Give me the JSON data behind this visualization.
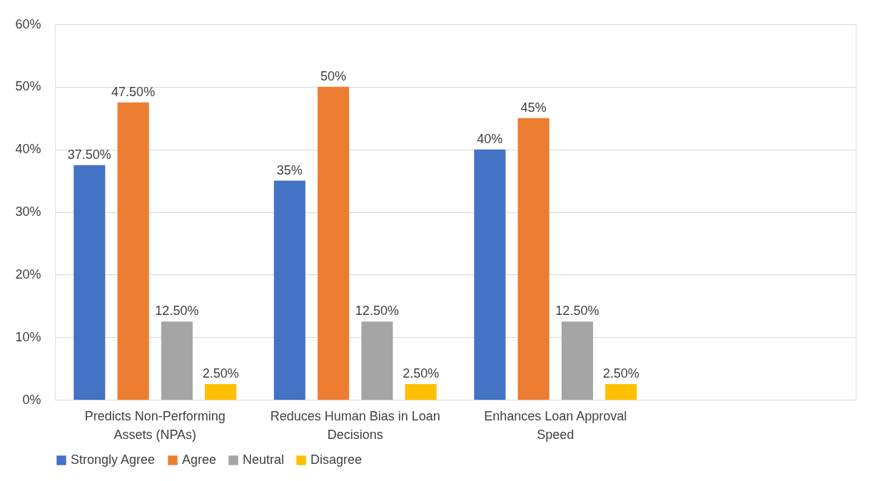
{
  "chart_data": {
    "type": "bar",
    "categories": [
      "Predicts Non-Performing Assets (NPAs)",
      "Reduces Human Bias in Loan Decisions",
      "Enhances Loan Approval Speed",
      null
    ],
    "series": [
      {
        "name": "Strongly Agree",
        "color": "#4472c4",
        "values": [
          37.5,
          35,
          40,
          null
        ],
        "value_labels": [
          "37.50%",
          "35%",
          "40%",
          null
        ]
      },
      {
        "name": "Agree",
        "color": "#ed7d31",
        "values": [
          47.5,
          50,
          45,
          null
        ],
        "value_labels": [
          "47.50%",
          "50%",
          "45%",
          null
        ]
      },
      {
        "name": "Neutral",
        "color": "#a5a5a5",
        "values": [
          12.5,
          12.5,
          12.5,
          null
        ],
        "value_labels": [
          "12.50%",
          "12.50%",
          "12.50%",
          null
        ]
      },
      {
        "name": "Disagree",
        "color": "#ffc000",
        "values": [
          2.5,
          2.5,
          2.5,
          null
        ],
        "value_labels": [
          "2.50%",
          "2.50%",
          "2.50%",
          null
        ]
      }
    ],
    "ylim": [
      0,
      60
    ],
    "yticks": [
      {
        "value": 0,
        "label": "0%"
      },
      {
        "value": 10,
        "label": "10%"
      },
      {
        "value": 20,
        "label": "20%"
      },
      {
        "value": 30,
        "label": "30%"
      },
      {
        "value": 40,
        "label": "40%"
      },
      {
        "value": 50,
        "label": "50%"
      },
      {
        "value": 60,
        "label": "60%"
      }
    ],
    "grid": "y",
    "legend": "bottom"
  }
}
